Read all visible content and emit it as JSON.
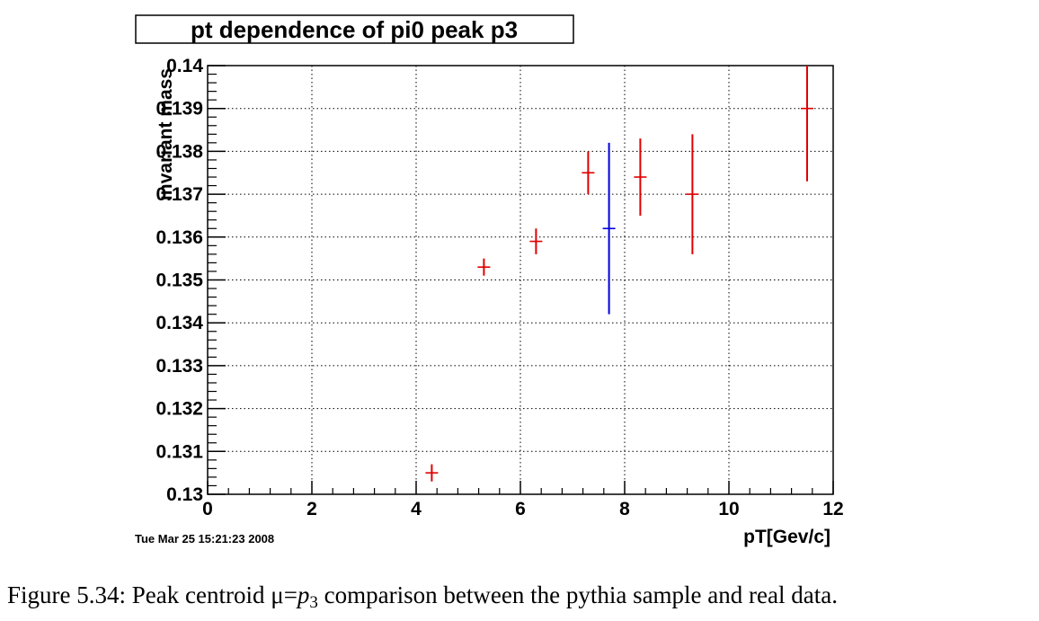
{
  "chart_data": {
    "type": "scatter",
    "title": "pt dependence of pi0 peak p3",
    "xlabel": "pT[Gev/c]",
    "ylabel": "invariant mass",
    "xlim": [
      0,
      12
    ],
    "ylim": [
      0.13,
      0.14
    ],
    "x_ticks": [
      "0",
      "2",
      "4",
      "6",
      "8",
      "10",
      "12"
    ],
    "y_ticks": [
      "0.13",
      "0.131",
      "0.132",
      "0.133",
      "0.134",
      "0.135",
      "0.136",
      "0.137",
      "0.138",
      "0.139",
      "0.14"
    ],
    "grid": true,
    "series": [
      {
        "color": "#e00000",
        "points": [
          {
            "x": 4.3,
            "y": 0.1305,
            "yerr": 0.0002
          },
          {
            "x": 5.3,
            "y": 0.1353,
            "yerr": 0.0002
          },
          {
            "x": 6.3,
            "y": 0.1359,
            "yerr": 0.0003
          },
          {
            "x": 7.3,
            "y": 0.1375,
            "yerr": 0.0005
          },
          {
            "x": 8.3,
            "y": 0.1374,
            "yerr": 0.0009
          },
          {
            "x": 9.3,
            "y": 0.137,
            "yerr": 0.0014
          },
          {
            "x": 11.5,
            "y": 0.139,
            "yerr": 0.0017
          }
        ]
      },
      {
        "color": "#0000dd",
        "points": [
          {
            "x": 7.7,
            "y": 0.1362,
            "yerr": 0.002
          }
        ]
      }
    ]
  },
  "timestamp": "Tue Mar 25 15:21:23 2008",
  "caption": {
    "prefix": "Figure 5.34: Peak centroid ",
    "mu": "μ",
    "equals": "=",
    "p": "p",
    "sub": "3",
    "suffix": " comparison between the pythia sample and real data."
  }
}
